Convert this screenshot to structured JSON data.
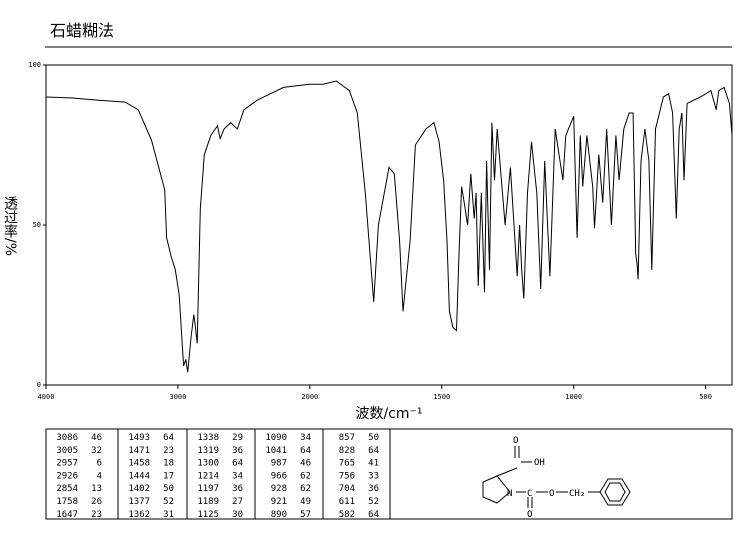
{
  "chart_data": {
    "type": "line",
    "title": "石蜡糊法",
    "x_label": "波数/cm⁻¹",
    "y_label": "透过率/%",
    "color": "#000000",
    "xlim": [
      4000,
      400
    ],
    "x_break": 2000,
    "x_break_zoom": 2,
    "xticks": [
      4000,
      3000,
      2000,
      1500,
      1000,
      500
    ],
    "ylim": [
      0,
      100
    ],
    "yticks": [
      0,
      50,
      100
    ],
    "x": [
      4000,
      3800,
      3600,
      3400,
      3300,
      3200,
      3100,
      3086,
      3050,
      3020,
      3005,
      2990,
      2957,
      2940,
      2926,
      2900,
      2880,
      2870,
      2854,
      2830,
      2800,
      2750,
      2700,
      2680,
      2650,
      2600,
      2550,
      2500,
      2400,
      2300,
      2200,
      2100,
      2000,
      1950,
      1900,
      1850,
      1820,
      1790,
      1758,
      1740,
      1700,
      1680,
      1660,
      1647,
      1620,
      1600,
      1560,
      1530,
      1510,
      1493,
      1480,
      1471,
      1458,
      1444,
      1435,
      1425,
      1415,
      1402,
      1390,
      1377,
      1370,
      1362,
      1350,
      1338,
      1330,
      1319,
      1310,
      1300,
      1290,
      1260,
      1240,
      1214,
      1205,
      1197,
      1189,
      1175,
      1160,
      1140,
      1125,
      1110,
      1090,
      1070,
      1041,
      1030,
      1010,
      1000,
      987,
      975,
      966,
      950,
      928,
      921,
      905,
      890,
      875,
      857,
      840,
      828,
      810,
      790,
      775,
      765,
      760,
      756,
      745,
      730,
      715,
      704,
      690,
      660,
      640,
      625,
      611,
      600,
      590,
      582,
      570,
      520,
      480,
      460,
      450,
      430,
      410,
      400
    ],
    "values": [
      90,
      89.7,
      89,
      88.4,
      86,
      76.5,
      61,
      46,
      40,
      36,
      32,
      28,
      6,
      8,
      4,
      15,
      22,
      19,
      13,
      55,
      72,
      78,
      81,
      77,
      80,
      82,
      80,
      86,
      89,
      91,
      93,
      93.5,
      94,
      94,
      95,
      92,
      85,
      60,
      26,
      50,
      68,
      66,
      45,
      23,
      45,
      75,
      80,
      82,
      76,
      64,
      45,
      23,
      18,
      17,
      40,
      62,
      57,
      50,
      66,
      52,
      60,
      31,
      60,
      29,
      70,
      36,
      82,
      64,
      80,
      50,
      68,
      34,
      50,
      36,
      27,
      60,
      76,
      60,
      30,
      70,
      34,
      80,
      64,
      78,
      82,
      84,
      46,
      78,
      62,
      78,
      62,
      49,
      72,
      57,
      80,
      50,
      78,
      64,
      80,
      85,
      85,
      41,
      38,
      33,
      70,
      80,
      70,
      36,
      80,
      90,
      91,
      85,
      52,
      80,
      85,
      64,
      88,
      90,
      92,
      86,
      92,
      93,
      88,
      78
    ]
  },
  "peak_table": [
    [
      [
        3086,
        46
      ],
      [
        3005,
        32
      ],
      [
        2957,
        6
      ],
      [
        2926,
        4
      ],
      [
        2854,
        13
      ],
      [
        1758,
        26
      ],
      [
        1647,
        23
      ]
    ],
    [
      [
        1493,
        64
      ],
      [
        1471,
        23
      ],
      [
        1458,
        18
      ],
      [
        1444,
        17
      ],
      [
        1402,
        50
      ],
      [
        1377,
        52
      ],
      [
        1362,
        31
      ]
    ],
    [
      [
        1338,
        29
      ],
      [
        1319,
        36
      ],
      [
        1300,
        64
      ],
      [
        1214,
        34
      ],
      [
        1197,
        36
      ],
      [
        1189,
        27
      ],
      [
        1125,
        30
      ]
    ],
    [
      [
        1090,
        34
      ],
      [
        1041,
        64
      ],
      [
        987,
        46
      ],
      [
        966,
        62
      ],
      [
        928,
        62
      ],
      [
        921,
        49
      ],
      [
        890,
        57
      ]
    ],
    [
      [
        857,
        50
      ],
      [
        828,
        64
      ],
      [
        765,
        41
      ],
      [
        756,
        33
      ],
      [
        704,
        36
      ],
      [
        611,
        52
      ],
      [
        582,
        64
      ]
    ]
  ],
  "structure": {
    "labels": [
      "O",
      "OH",
      "N",
      "C",
      "O",
      "O",
      "CH₂"
    ]
  }
}
